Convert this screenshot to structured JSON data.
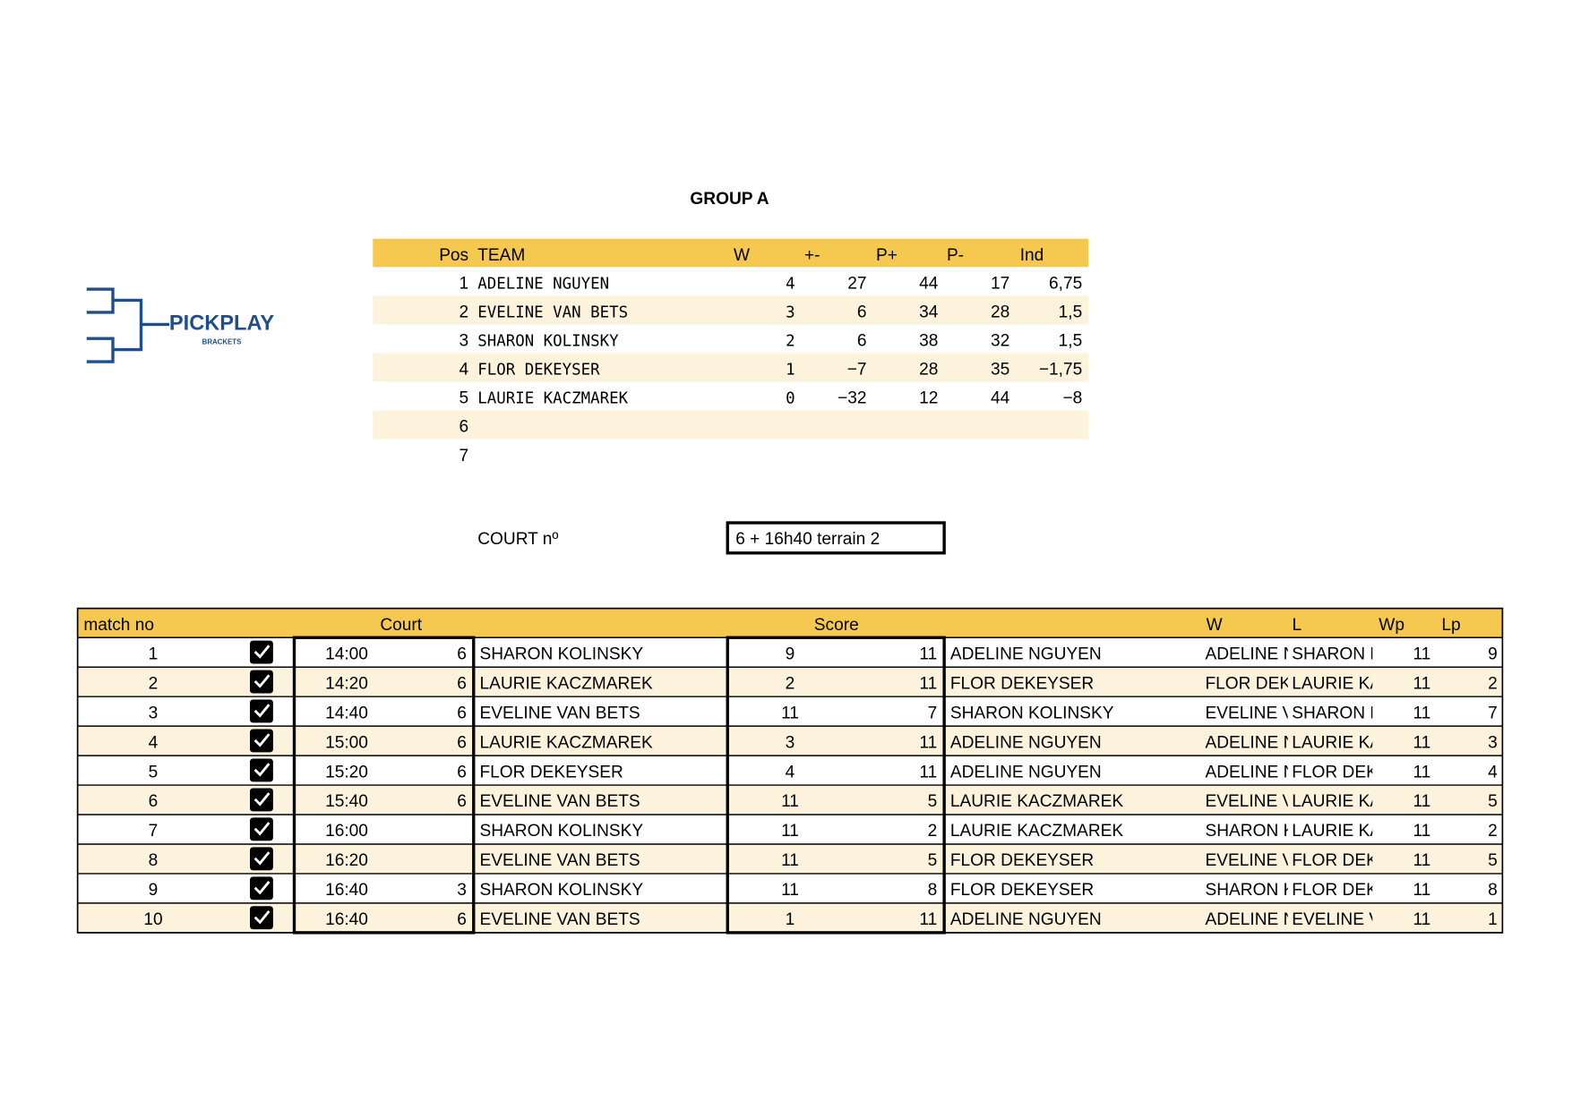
{
  "title": "GROUP A",
  "logo": {
    "name": "PICKPLAY",
    "tagline": "BRACKETS"
  },
  "standings": {
    "headers": [
      "Pos",
      "TEAM",
      "W",
      "+-",
      "P+",
      "P-",
      "Ind"
    ],
    "rows": [
      [
        1,
        "ADELINE NGUYEN",
        4,
        27,
        44,
        17,
        "6,75"
      ],
      [
        2,
        "EVELINE VAN BETS",
        3,
        6,
        34,
        28,
        "1,5"
      ],
      [
        3,
        "SHARON KOLINSKY",
        2,
        6,
        38,
        32,
        "1,5"
      ],
      [
        4,
        "FLOR DEKEYSER",
        1,
        "−7",
        28,
        35,
        "−1,75"
      ],
      [
        5,
        "LAURIE KACZMAREK",
        0,
        "−32",
        12,
        44,
        "−8"
      ],
      [
        6
      ],
      [
        7
      ]
    ]
  },
  "court": {
    "label": "COURT nº",
    "value": "6 + 16h40 terrain 2"
  },
  "matches": {
    "headers": [
      "match no",
      "Court",
      "Score",
      "W",
      "L",
      "Wp",
      "Lp"
    ],
    "rows": [
      [
        1,
        "14:00",
        6,
        "SHARON KOLINSKY",
        9,
        11,
        "ADELINE NGUYEN",
        "ADELINE NGUYEN",
        "SHARON KOLINSKY",
        11,
        9
      ],
      [
        2,
        "14:20",
        6,
        "LAURIE KACZMAREK",
        2,
        11,
        "FLOR DEKEYSER",
        "FLOR DEKEYSER",
        "LAURIE KACZMAREK",
        11,
        2
      ],
      [
        3,
        "14:40",
        6,
        "EVELINE VAN BETS",
        11,
        7,
        "SHARON KOLINSKY",
        "EVELINE VAN BETS",
        "SHARON KOLINSKY",
        11,
        7
      ],
      [
        4,
        "15:00",
        6,
        "LAURIE KACZMAREK",
        3,
        11,
        "ADELINE NGUYEN",
        "ADELINE NGUYEN",
        "LAURIE KACZMAREK",
        11,
        3
      ],
      [
        5,
        "15:20",
        6,
        "FLOR DEKEYSER",
        4,
        11,
        "ADELINE NGUYEN",
        "ADELINE NGUYEN",
        "FLOR DEKEYSER",
        11,
        4
      ],
      [
        6,
        "15:40",
        6,
        "EVELINE VAN BETS",
        11,
        5,
        "LAURIE KACZMAREK",
        "EVELINE VAN BETS",
        "LAURIE KACZMAREK",
        11,
        5
      ],
      [
        7,
        "16:00",
        null,
        "SHARON KOLINSKY",
        11,
        2,
        "LAURIE KACZMAREK",
        "SHARON KOLINSKY",
        "LAURIE KACZMAREK",
        11,
        2
      ],
      [
        8,
        "16:20",
        null,
        "EVELINE VAN BETS",
        11,
        5,
        "FLOR DEKEYSER",
        "EVELINE VAN BETS",
        "FLOR DEKEYSER",
        11,
        5
      ],
      [
        9,
        "16:40",
        3,
        "SHARON KOLINSKY",
        11,
        8,
        "FLOR DEKEYSER",
        "SHARON KOLINSKY",
        "FLOR DEKEYSER",
        11,
        8
      ],
      [
        10,
        "16:40",
        6,
        "EVELINE VAN BETS",
        1,
        11,
        "ADELINE NGUYEN",
        "ADELINE NGUYEN",
        "EVELINE VAN BETS",
        11,
        1
      ]
    ]
  }
}
